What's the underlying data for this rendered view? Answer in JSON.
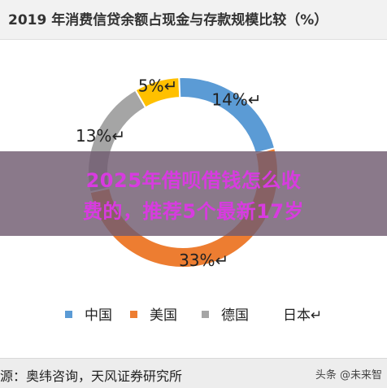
{
  "chart_data": {
    "type": "pie",
    "title": "2019 年消费信贷余额占现金与存款规模比较（%）",
    "categories": [
      "中国",
      "美国",
      "德国",
      "日本"
    ],
    "values": [
      14,
      33,
      13,
      5
    ],
    "value_labels": [
      "14%↵",
      "33%↵",
      "13%↵",
      "5%↵"
    ],
    "colors": [
      "#5b9bd5",
      "#ed7d31",
      "#a5a5a5",
      "#ffc000"
    ],
    "legend": {
      "position": "bottom",
      "labels": [
        "中国",
        "美国",
        "德国",
        "日本↵"
      ]
    }
  },
  "overlay": {
    "line1": "2025年借呗借钱怎么收",
    "line2": "费的，推荐5个最新17岁"
  },
  "source": "源：奥纬咨询，天风证券研究所",
  "watermark": "头条 @未来智"
}
